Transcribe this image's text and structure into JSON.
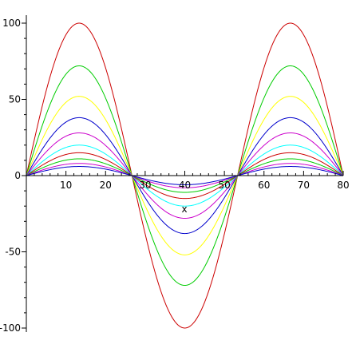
{
  "chart_data": {
    "type": "line",
    "title": "",
    "xlabel": "x",
    "ylabel": "",
    "xlim": [
      0,
      80
    ],
    "ylim": [
      -100,
      100
    ],
    "grid": false,
    "legend": "none",
    "function": "a * sin(pi * x / 26.67), one curve per amplitude a",
    "x_ticks": [
      10,
      20,
      30,
      40,
      50,
      60,
      70,
      80
    ],
    "y_ticks": [
      100,
      50,
      0,
      -50,
      -100
    ],
    "x_tick_labels": [
      "10",
      "20",
      "30",
      "40",
      "50",
      "60",
      "70",
      "80"
    ],
    "y_tick_labels": [
      "100",
      "50",
      "0",
      "-50",
      "-100"
    ],
    "x_period": 53.33,
    "series": [
      {
        "amplitude": 100,
        "color": "#cc0000"
      },
      {
        "amplitude": 72,
        "color": "#00cc00"
      },
      {
        "amplitude": 52,
        "color": "#ffff00"
      },
      {
        "amplitude": 38,
        "color": "#0000cc"
      },
      {
        "amplitude": 28,
        "color": "#cc00cc"
      },
      {
        "amplitude": 20,
        "color": "#00ffff"
      },
      {
        "amplitude": 15,
        "color": "#cc0000"
      },
      {
        "amplitude": 11,
        "color": "#00cc00"
      },
      {
        "amplitude": 8,
        "color": "#cc00cc"
      },
      {
        "amplitude": 6,
        "color": "#0000cc"
      }
    ]
  }
}
